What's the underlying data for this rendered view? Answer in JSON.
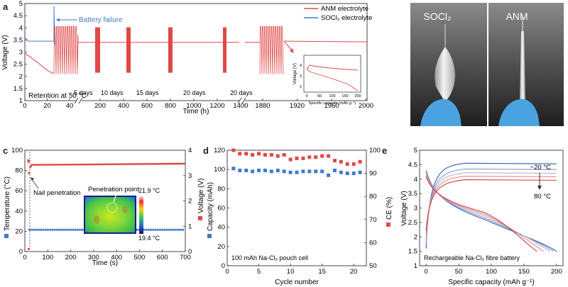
{
  "panel_labels": {
    "a": "a",
    "b": "b",
    "c": "c",
    "d": "d",
    "e": "e"
  },
  "chart_data": [
    {
      "id": "a",
      "type": "line",
      "xlabel": "Time (h)",
      "ylabel": "Voltage (V)",
      "ylim": [
        1,
        5
      ],
      "yticks": [
        "1",
        "1.5",
        "2",
        "2.5",
        "3",
        "3.5",
        "4",
        "4.5",
        "5"
      ],
      "xticks_left": [
        "0",
        "20",
        "40"
      ],
      "xticks_mid": [
        "200",
        "400",
        "600",
        "800",
        "1000",
        "1200",
        "1400"
      ],
      "xticks_right": [
        "1880",
        "1920",
        "1960",
        "2000"
      ],
      "legend": [
        "ANM electrolyte",
        "SOCl₂ electrolyte"
      ],
      "series_colors": [
        "#e04848",
        "#3d7cc9"
      ],
      "annotations": {
        "failure": "Battery failure",
        "retention": "Retention at 50 °C",
        "rests": [
          "5 days",
          "10 days",
          "15 days",
          "20 days",
          "20 days"
        ]
      },
      "rest_voltage": 3.4,
      "cycle_range": [
        2.1,
        4.05
      ],
      "inset": {
        "xlabel": "Specific capacity (mAh g⁻¹)",
        "ylabel": "Voltage (V)",
        "xticks": [
          "0",
          "50",
          "100",
          "150",
          "200"
        ],
        "yticks": [
          "2",
          "3",
          "4"
        ]
      }
    },
    {
      "id": "b",
      "type": "photo",
      "labels": [
        "SOCl₂",
        "ANM"
      ]
    },
    {
      "id": "c",
      "type": "scatter",
      "xlabel": "Time (s)",
      "ylabel_left": "Temperature (°C)",
      "ylabel_right": "Voltage (V)",
      "xlim": [
        0,
        700
      ],
      "xticks": [
        "0",
        "100",
        "200",
        "300",
        "400",
        "500",
        "600",
        "700"
      ],
      "ylim_left": [
        0,
        100
      ],
      "yticks_left": [
        "0",
        "20",
        "40",
        "60",
        "80",
        "100"
      ],
      "ylim_right": [
        0,
        4
      ],
      "yticks_right": [
        "0",
        "1",
        "2",
        "3",
        "4"
      ],
      "temperature_level": 22,
      "voltage_level": 3.42,
      "annotations": {
        "nail": "Nail penetration",
        "point": "Penetration point",
        "tmax": "21.9 °C",
        "tmin": "19.4 °C"
      }
    },
    {
      "id": "d",
      "type": "scatter",
      "xlabel": "Cycle number",
      "ylabel_left": "Capacity (mAh)",
      "ylabel_right": "CE (%)",
      "xlim": [
        0,
        22
      ],
      "xticks": [
        "0",
        "5",
        "10",
        "15",
        "20"
      ],
      "ylim_left": [
        0,
        120
      ],
      "yticks_left": [
        "0",
        "20",
        "40",
        "60",
        "80",
        "100",
        "120"
      ],
      "ylim_right": [
        50,
        100
      ],
      "yticks_right": [
        "50",
        "60",
        "70",
        "80",
        "90",
        "100"
      ],
      "x": [
        1,
        2,
        3,
        4,
        5,
        6,
        7,
        8,
        9,
        10,
        11,
        12,
        13,
        14,
        15,
        16,
        17,
        18,
        19,
        20,
        21
      ],
      "capacity": [
        101,
        99,
        99,
        98,
        99,
        99,
        98,
        99,
        98,
        97,
        97,
        98,
        98,
        98,
        98,
        94,
        99,
        97,
        96,
        96,
        97
      ],
      "ce": [
        100,
        98.5,
        98.5,
        98,
        98.5,
        98,
        98,
        97.5,
        98,
        96,
        96.5,
        96.5,
        97,
        97,
        97.5,
        97.5,
        95.5,
        95,
        94,
        94,
        95
      ],
      "annotation": "100 mAh Na-Cl₂ pouch cell"
    },
    {
      "id": "e",
      "type": "line",
      "xlabel": "Specific capacity (mAh g⁻¹)",
      "ylabel": "Voltage (V)",
      "xlim": [
        -10,
        210
      ],
      "xticks": [
        "0",
        "50",
        "100",
        "150",
        "200"
      ],
      "ylim": [
        1,
        5
      ],
      "yticks": [
        "1",
        "1.5",
        "2",
        "2.5",
        "3",
        "3.5",
        "4",
        "4.5",
        "5"
      ],
      "temps": [
        "−20 °C",
        "80 °C"
      ],
      "annotation": "Rechargeable Na-Cl₂ fibre battery",
      "series_colors": [
        "#2d5fb0",
        "#7f9ad6",
        "#c2b0cc",
        "#e58a8a",
        "#d03a3a"
      ]
    }
  ]
}
